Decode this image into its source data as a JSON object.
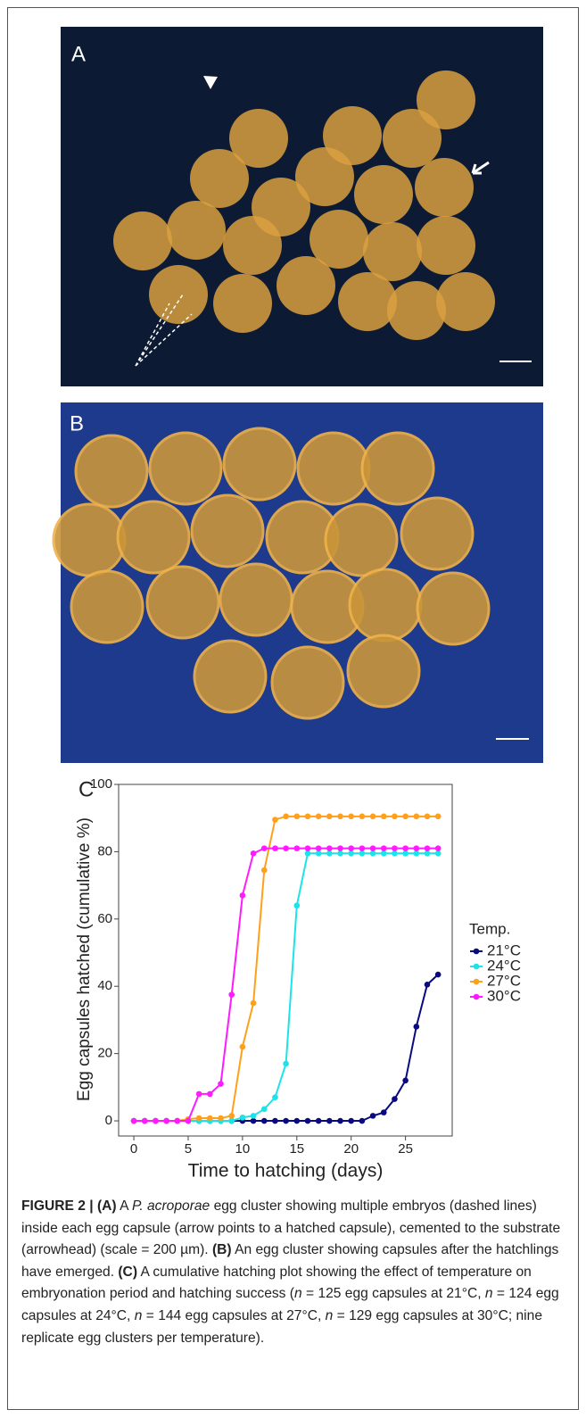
{
  "panels": {
    "a": "A",
    "b": "B"
  },
  "chart_data": {
    "type": "line",
    "panel_label": "C",
    "x_label": "Time to hatching (days)",
    "y_label": "Egg capsules hatched (cumulative %)",
    "legend_title": "Temp.",
    "x": [
      0,
      1,
      2,
      3,
      4,
      5,
      6,
      7,
      8,
      9,
      10,
      11,
      12,
      13,
      14,
      15,
      16,
      17,
      18,
      19,
      20,
      21,
      22,
      23,
      24,
      25,
      26,
      27,
      28
    ],
    "series": [
      {
        "name": "21°C",
        "color": "#0a0a80",
        "values": [
          0,
          0,
          0,
          0,
          0,
          0,
          0,
          0,
          0,
          0,
          0,
          0,
          0,
          0,
          0,
          0,
          0,
          0,
          0,
          0,
          0,
          0,
          1.5,
          2.5,
          6.5,
          12,
          28,
          40.5,
          43.5
        ]
      },
      {
        "name": "24°C",
        "color": "#1de3e8",
        "values": [
          0,
          0,
          0,
          0,
          0,
          0,
          0,
          0,
          0,
          0,
          1,
          1.5,
          3.5,
          7,
          17,
          64,
          79.5,
          79.5,
          79.5,
          79.5,
          79.5,
          79.5,
          79.5,
          79.5,
          79.5,
          79.5,
          79.5,
          79.5,
          79.5
        ]
      },
      {
        "name": "27°C",
        "color": "#ffa01a",
        "values": [
          0,
          0,
          0,
          0,
          0,
          0.5,
          0.8,
          0.8,
          0.8,
          1.5,
          22,
          35,
          74.5,
          89.5,
          90.5,
          90.5,
          90.5,
          90.5,
          90.5,
          90.5,
          90.5,
          90.5,
          90.5,
          90.5,
          90.5,
          90.5,
          90.5,
          90.5,
          90.5
        ]
      },
      {
        "name": "30°C",
        "color": "#ff1aff",
        "values": [
          0,
          0,
          0,
          0,
          0,
          0,
          8,
          8,
          11,
          37.5,
          67,
          79.5,
          81,
          81,
          81,
          81,
          81,
          81,
          81,
          81,
          81,
          81,
          81,
          81,
          81,
          81,
          81,
          81,
          81
        ]
      }
    ],
    "xlim": [
      -1.4,
      29.3
    ],
    "ylim": [
      -4.5,
      100
    ],
    "xticks": [
      0,
      5,
      10,
      15,
      20,
      25
    ],
    "yticks": [
      0,
      20,
      40,
      60,
      80,
      100
    ]
  },
  "caption": [
    "FIGURE 2 | (A)",
    " A ",
    "P. acroporae",
    " egg cluster showing multiple embryos (dashed lines) inside each egg capsule (arrow points to a hatched capsule), cemented to the substrate (arrowhead) (scale = 200 µm). ",
    "(B)",
    " An egg cluster showing capsules after the hatchlings have emerged. ",
    "(C)",
    " A cumulative hatching plot showing the effect of temperature on embryonation period and hatching success (",
    "n",
    " = 125 egg capsules at 21°C, ",
    "n",
    " = 124 egg capsules at 24°C, ",
    "n",
    " = 144 egg capsules at 27°C, ",
    "n",
    " = 129 egg capsules at 30°C; nine replicate egg clusters per temperature)."
  ]
}
